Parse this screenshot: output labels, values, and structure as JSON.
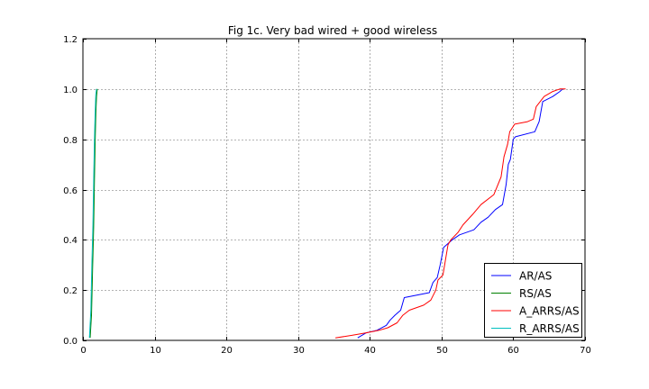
{
  "chart_data": {
    "type": "line",
    "title": "Fig 1c. Very bad wired + good wireless",
    "xlabel": "",
    "ylabel": "",
    "xlim": [
      0,
      70
    ],
    "ylim": [
      0,
      1.2
    ],
    "xticks": [
      0,
      10,
      20,
      30,
      40,
      50,
      60,
      70
    ],
    "xtick_labels": [
      "0",
      "10",
      "20",
      "30",
      "40",
      "50",
      "60",
      "70"
    ],
    "yticks": [
      0.0,
      0.2,
      0.4,
      0.6,
      0.8,
      1.0,
      1.2
    ],
    "ytick_labels": [
      "0.0",
      "0.2",
      "0.4",
      "0.6",
      "0.8",
      "1.0",
      "1.2"
    ],
    "grid": true,
    "legend_position": "lower-right",
    "series": [
      {
        "name": "AR/AS",
        "color": "#0000ff",
        "x": [
          38.3,
          39.5,
          41.0,
          42.3,
          42.8,
          43.5,
          44.3,
          44.8,
          48.3,
          48.8,
          49.4,
          49.8,
          50.3,
          51.5,
          52.5,
          54.5,
          55.5,
          56.5,
          57.5,
          58.5,
          59.0,
          59.3,
          59.6,
          60.0,
          60.3,
          63.0,
          63.6,
          64.1,
          65.5,
          66.5,
          66.9
        ],
        "y": [
          0.01,
          0.03,
          0.04,
          0.06,
          0.08,
          0.1,
          0.12,
          0.17,
          0.19,
          0.23,
          0.25,
          0.3,
          0.37,
          0.4,
          0.42,
          0.44,
          0.47,
          0.49,
          0.52,
          0.54,
          0.62,
          0.7,
          0.72,
          0.8,
          0.81,
          0.83,
          0.87,
          0.95,
          0.97,
          0.99,
          1.0
        ]
      },
      {
        "name": "RS/AS",
        "color": "#008000",
        "x": [
          1.0,
          1.2,
          1.35,
          1.5,
          1.6,
          1.7,
          1.8,
          1.9,
          2.0
        ],
        "y": [
          0.01,
          0.1,
          0.28,
          0.45,
          0.62,
          0.78,
          0.9,
          0.97,
          1.0
        ]
      },
      {
        "name": "A_ARRS/AS",
        "color": "#ff0000",
        "x": [
          35.2,
          37.5,
          39.5,
          41.3,
          42.5,
          43.8,
          44.6,
          45.5,
          47.5,
          48.5,
          49.2,
          49.5,
          50.2,
          50.9,
          51.3,
          52.3,
          53.0,
          54.3,
          55.5,
          57.3,
          58.3,
          58.7,
          59.2,
          59.5,
          60.2,
          62.0,
          62.8,
          63.2,
          64.3,
          65.5,
          66.5,
          67.3
        ],
        "y": [
          0.01,
          0.02,
          0.03,
          0.04,
          0.05,
          0.07,
          0.1,
          0.12,
          0.14,
          0.16,
          0.2,
          0.24,
          0.26,
          0.38,
          0.4,
          0.43,
          0.46,
          0.5,
          0.54,
          0.58,
          0.65,
          0.73,
          0.78,
          0.83,
          0.86,
          0.87,
          0.88,
          0.93,
          0.97,
          0.99,
          1.0,
          1.0
        ]
      },
      {
        "name": "R_ARRS/AS",
        "color": "#00bfbf",
        "x": [
          0.9,
          1.1,
          1.25,
          1.4,
          1.5,
          1.6,
          1.7,
          1.8,
          1.9
        ],
        "y": [
          0.01,
          0.12,
          0.3,
          0.46,
          0.63,
          0.79,
          0.9,
          0.98,
          1.0
        ]
      }
    ]
  }
}
